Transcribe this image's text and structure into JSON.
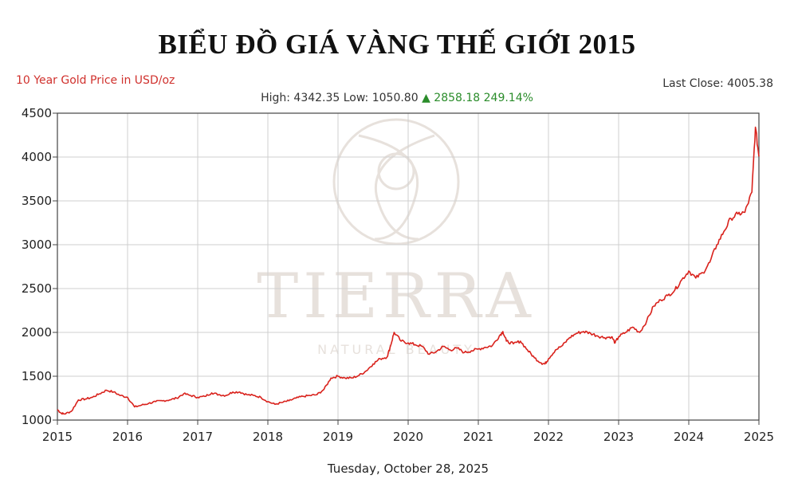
{
  "page": {
    "title": "BIỂU ĐỒ GIÁ VÀNG THẾ GIỚI 2015",
    "subtitle": "10 Year Gold Price in USD/oz",
    "last_close": "Last Close: 4005.38",
    "stats_prefix": "High: 4342.35 Low: 1050.80",
    "stats_change": "▲ 2858.18 249.14%",
    "date": "Tuesday, October 28, 2025"
  },
  "watermark": {
    "brand": "TIERRA",
    "tagline": "NATURAL BEAUTY"
  },
  "colors": {
    "line": "#d9221c",
    "grid": "#cfcfcf",
    "axis": "#444444",
    "subtitle": "#d0312d",
    "change": "#2a8c2a"
  },
  "chart_data": {
    "type": "line",
    "title": "10 Year Gold Price in USD/oz",
    "xlabel": "",
    "ylabel": "",
    "xlim": [
      2015,
      2025
    ],
    "ylim": [
      1000,
      4500
    ],
    "x_ticks": [
      2015,
      2016,
      2017,
      2018,
      2019,
      2020,
      2021,
      2022,
      2023,
      2024,
      2025
    ],
    "y_ticks": [
      1000,
      1500,
      2000,
      2500,
      3000,
      3500,
      4000,
      4500
    ],
    "grid": true,
    "legend": "none",
    "series": [
      {
        "x": [
          2015.0,
          2015.05,
          2015.1,
          2015.2,
          2015.3,
          2015.4,
          2015.5,
          2015.6,
          2015.7,
          2015.8,
          2015.9,
          2016.0,
          2016.1,
          2016.2,
          2016.3,
          2016.4,
          2016.5,
          2016.6,
          2016.7,
          2016.8,
          2016.9,
          2017.0,
          2017.1,
          2017.2,
          2017.3,
          2017.4,
          2017.5,
          2017.6,
          2017.7,
          2017.8,
          2017.9,
          2018.0,
          2018.1,
          2018.2,
          2018.3,
          2018.4,
          2018.5,
          2018.6,
          2018.7,
          2018.8,
          2018.9,
          2019.0,
          2019.1,
          2019.2,
          2019.3,
          2019.4,
          2019.5,
          2019.6,
          2019.7,
          2019.75,
          2019.8,
          2019.9,
          2020.0,
          2020.1,
          2020.2,
          2020.3,
          2020.4,
          2020.5,
          2020.6,
          2020.7,
          2020.8,
          2020.9,
          2021.0,
          2021.1,
          2021.2,
          2021.3,
          2021.35,
          2021.4,
          2021.5,
          2021.6,
          2021.7,
          2021.8,
          2021.9,
          2021.95,
          2022.0,
          2022.1,
          2022.2,
          2022.3,
          2022.4,
          2022.5,
          2022.6,
          2022.7,
          2022.8,
          2022.9,
          2022.95,
          2023.0,
          2023.1,
          2023.2,
          2023.3,
          2023.4,
          2023.5,
          2023.6,
          2023.7,
          2023.8,
          2023.9,
          2024.0,
          2024.1,
          2024.2,
          2024.3,
          2024.4,
          2024.5,
          2024.6,
          2024.7,
          2024.8,
          2024.9,
          2024.95,
          2025.0
        ],
        "values": [
          1120,
          1080,
          1070,
          1100,
          1230,
          1240,
          1260,
          1300,
          1340,
          1320,
          1280,
          1260,
          1150,
          1170,
          1190,
          1210,
          1220,
          1230,
          1250,
          1300,
          1280,
          1260,
          1270,
          1310,
          1290,
          1280,
          1320,
          1320,
          1290,
          1280,
          1260,
          1210,
          1180,
          1200,
          1220,
          1250,
          1270,
          1280,
          1290,
          1350,
          1480,
          1500,
          1480,
          1480,
          1510,
          1560,
          1640,
          1700,
          1720,
          1850,
          2000,
          1900,
          1880,
          1860,
          1840,
          1750,
          1780,
          1840,
          1800,
          1820,
          1770,
          1790,
          1810,
          1830,
          1850,
          1960,
          2010,
          1900,
          1870,
          1900,
          1800,
          1710,
          1650,
          1640,
          1700,
          1800,
          1850,
          1940,
          1990,
          2010,
          1990,
          1960,
          1940,
          1950,
          1880,
          1950,
          2000,
          2060,
          2000,
          2130,
          2300,
          2370,
          2420,
          2480,
          2600,
          2700,
          2620,
          2680,
          2800,
          3000,
          3150,
          3300,
          3350,
          3370,
          3600,
          4340,
          4005
        ]
      }
    ]
  }
}
